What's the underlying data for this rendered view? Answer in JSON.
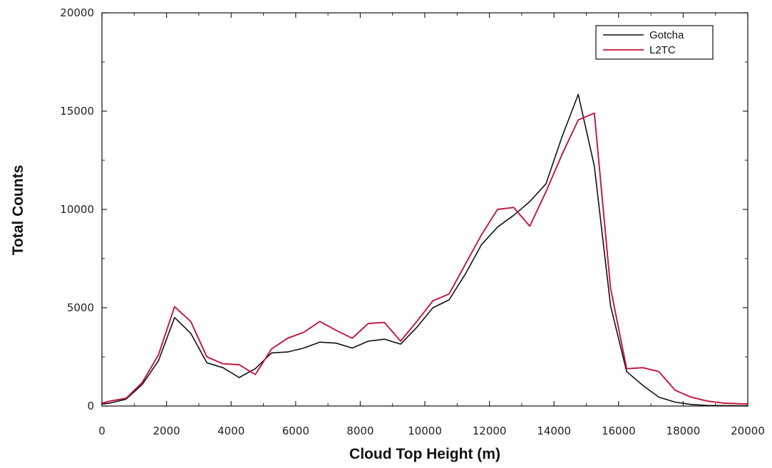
{
  "colors": {
    "gotcha": "#111111",
    "l2tc": "#c0143c",
    "axis": "#222222"
  },
  "chart_data": {
    "type": "line",
    "xlabel": "Cloud Top Height (m)",
    "ylabel": "Total Counts",
    "xlim": [
      0,
      20000
    ],
    "ylim": [
      0,
      20000
    ],
    "xticks": [
      0,
      2000,
      4000,
      6000,
      8000,
      10000,
      12000,
      14000,
      16000,
      18000,
      20000
    ],
    "yticks": [
      0,
      5000,
      10000,
      15000,
      20000
    ],
    "grid": false,
    "legend_position": "top-right",
    "x": [
      0,
      250,
      750,
      1250,
      1750,
      2250,
      2750,
      3250,
      3750,
      4250,
      4750,
      5250,
      5750,
      6250,
      6750,
      7250,
      7750,
      8250,
      8750,
      9250,
      9750,
      10250,
      10750,
      11250,
      11750,
      12250,
      12750,
      13250,
      13750,
      14250,
      14750,
      15250,
      15750,
      16250,
      16750,
      17250,
      17750,
      18250,
      18750,
      19250,
      20000
    ],
    "series": [
      {
        "name": "Gotcha",
        "values": [
          100,
          150,
          350,
          1100,
          2300,
          4500,
          3700,
          2200,
          1950,
          1450,
          1900,
          2700,
          2750,
          2950,
          3250,
          3200,
          2950,
          3300,
          3400,
          3150,
          4000,
          5000,
          5400,
          6700,
          8200,
          9100,
          9700,
          10400,
          11300,
          13700,
          15850,
          12200,
          5100,
          1750,
          1050,
          450,
          200,
          80,
          30,
          20,
          10
        ]
      },
      {
        "name": "L2TC",
        "values": [
          150,
          250,
          400,
          1200,
          2600,
          5050,
          4300,
          2500,
          2150,
          2100,
          1600,
          2900,
          3450,
          3750,
          4300,
          3850,
          3450,
          4200,
          4250,
          3300,
          4300,
          5350,
          5700,
          7200,
          8700,
          10000,
          10100,
          9150,
          10900,
          12800,
          14550,
          14900,
          6000,
          1900,
          1950,
          1750,
          800,
          450,
          250,
          150,
          100
        ]
      }
    ]
  }
}
